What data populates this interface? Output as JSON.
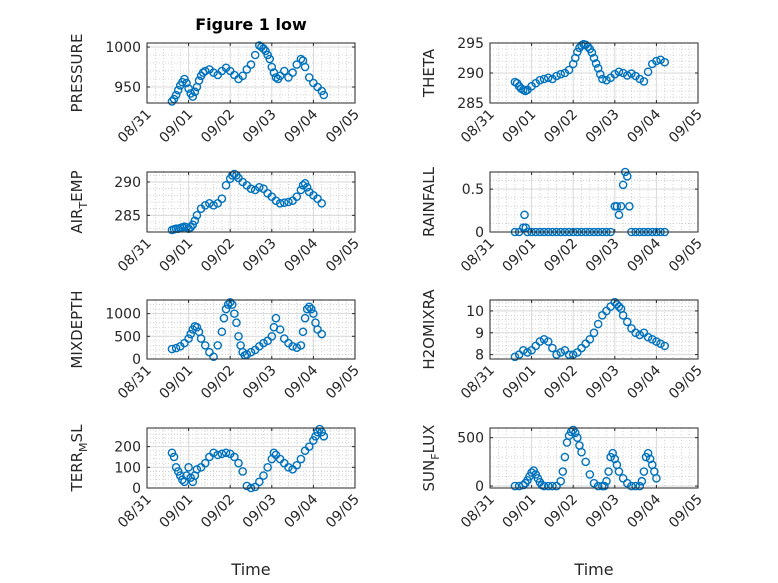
{
  "figure": {
    "title": "Figure 1 low",
    "marker_color": "#0072BD",
    "x_tick_labels": [
      "08/31",
      "09/01",
      "09/02",
      "09/03",
      "09/04",
      "09/05"
    ],
    "x_label": "Time"
  },
  "chart_data": [
    {
      "type": "scatter",
      "ylabel": "PRESSURE",
      "ylim": [
        930,
        1005
      ],
      "yticks": [
        950,
        1000
      ],
      "xlim": [
        0,
        5
      ],
      "x_tick_labels": [
        "08/31",
        "09/01",
        "09/02",
        "09/03",
        "09/04",
        "09/05"
      ],
      "grid": true,
      "minor_grid": true,
      "x": [
        0.6,
        0.65,
        0.7,
        0.75,
        0.8,
        0.85,
        0.9,
        0.95,
        1.0,
        1.05,
        1.1,
        1.15,
        1.2,
        1.25,
        1.3,
        1.35,
        1.4,
        1.5,
        1.6,
        1.7,
        1.8,
        1.9,
        2.0,
        2.1,
        2.2,
        2.3,
        2.4,
        2.5,
        2.6,
        2.7,
        2.75,
        2.8,
        2.85,
        2.9,
        2.95,
        3.0,
        3.05,
        3.1,
        3.15,
        3.2,
        3.3,
        3.4,
        3.5,
        3.6,
        3.7,
        3.75,
        3.8,
        3.9,
        4.0,
        4.1,
        4.2,
        4.25
      ],
      "y": [
        932,
        935,
        940,
        946,
        952,
        956,
        960,
        955,
        948,
        942,
        938,
        944,
        950,
        958,
        964,
        968,
        970,
        972,
        968,
        965,
        970,
        974,
        970,
        965,
        960,
        964,
        972,
        978,
        990,
        1002,
        1000,
        998,
        995,
        990,
        985,
        975,
        968,
        962,
        960,
        964,
        970,
        962,
        968,
        978,
        985,
        983,
        975,
        962,
        955,
        950,
        945,
        940
      ]
    },
    {
      "type": "scatter",
      "ylabel": "THETA",
      "ylim": [
        285,
        295
      ],
      "yticks": [
        285,
        290,
        295
      ],
      "xlim": [
        0,
        5
      ],
      "x_tick_labels": [
        "08/31",
        "09/01",
        "09/02",
        "09/03",
        "09/04",
        "09/05"
      ],
      "grid": true,
      "minor_grid": true,
      "x": [
        0.6,
        0.65,
        0.7,
        0.75,
        0.8,
        0.85,
        0.9,
        1.0,
        1.1,
        1.2,
        1.3,
        1.4,
        1.5,
        1.6,
        1.7,
        1.8,
        1.9,
        2.0,
        2.05,
        2.1,
        2.15,
        2.2,
        2.25,
        2.3,
        2.35,
        2.4,
        2.45,
        2.5,
        2.55,
        2.6,
        2.65,
        2.7,
        2.8,
        2.9,
        3.0,
        3.1,
        3.2,
        3.3,
        3.4,
        3.5,
        3.6,
        3.7,
        3.8,
        3.9,
        4.0,
        4.1,
        4.2
      ],
      "y": [
        288.5,
        288.3,
        287.8,
        287.4,
        287.2,
        287.0,
        287.2,
        287.8,
        288.3,
        288.8,
        289.0,
        289.2,
        289.0,
        289.5,
        289.8,
        290.0,
        290.5,
        291.5,
        292.5,
        293.5,
        294.2,
        294.6,
        294.8,
        294.7,
        294.4,
        294.0,
        293.4,
        292.5,
        291.6,
        290.8,
        289.8,
        289.0,
        288.8,
        289.2,
        289.8,
        290.2,
        290.0,
        289.6,
        289.9,
        289.5,
        289.0,
        288.6,
        290.2,
        291.5,
        292.0,
        292.2,
        291.8
      ]
    },
    {
      "type": "scatter",
      "ylabel": "AIR_T_EMP",
      "ylim": [
        282.5,
        291.5
      ],
      "yticks": [
        285,
        290
      ],
      "xlim": [
        0,
        5
      ],
      "x_tick_labels": [
        "08/31",
        "09/01",
        "09/02",
        "09/03",
        "09/04",
        "09/05"
      ],
      "grid": true,
      "minor_grid": true,
      "x": [
        0.6,
        0.65,
        0.7,
        0.75,
        0.8,
        0.85,
        0.9,
        0.95,
        1.0,
        1.05,
        1.1,
        1.15,
        1.2,
        1.3,
        1.4,
        1.5,
        1.6,
        1.7,
        1.8,
        1.9,
        2.0,
        2.05,
        2.1,
        2.15,
        2.2,
        2.3,
        2.4,
        2.5,
        2.6,
        2.7,
        2.8,
        2.9,
        3.0,
        3.1,
        3.2,
        3.3,
        3.4,
        3.5,
        3.6,
        3.7,
        3.75,
        3.8,
        3.85,
        3.9,
        4.0,
        4.1,
        4.2
      ],
      "y": [
        282.8,
        282.9,
        283.0,
        283.0,
        283.1,
        283.2,
        283.3,
        283.2,
        283.0,
        283.2,
        283.6,
        284.2,
        285.0,
        286.0,
        286.5,
        286.8,
        286.5,
        286.8,
        287.5,
        289.5,
        290.5,
        291.0,
        291.2,
        291.0,
        290.6,
        290.0,
        289.5,
        289.0,
        288.8,
        289.2,
        289.0,
        288.3,
        287.8,
        287.2,
        286.8,
        286.9,
        287.0,
        287.2,
        287.8,
        288.8,
        289.5,
        289.8,
        289.2,
        288.5,
        288.0,
        287.5,
        286.8
      ]
    },
    {
      "type": "scatter",
      "ylabel": "RAINFALL",
      "ylim": [
        0,
        0.7
      ],
      "yticks": [
        0,
        0.5
      ],
      "xlim": [
        0,
        5
      ],
      "x_tick_labels": [
        "08/31",
        "09/01",
        "09/02",
        "09/03",
        "09/04",
        "09/05"
      ],
      "grid": true,
      "minor_grid": true,
      "x": [
        0.6,
        0.7,
        0.8,
        0.83,
        0.86,
        0.9,
        1.0,
        1.1,
        1.2,
        1.3,
        1.4,
        1.5,
        1.6,
        1.7,
        1.8,
        1.9,
        2.0,
        2.1,
        2.2,
        2.3,
        2.4,
        2.5,
        2.6,
        2.7,
        2.8,
        2.9,
        3.0,
        3.05,
        3.1,
        3.15,
        3.2,
        3.25,
        3.3,
        3.35,
        3.4,
        3.5,
        3.6,
        3.7,
        3.8,
        3.9,
        4.0,
        4.1,
        4.2
      ],
      "y": [
        0,
        0,
        0.05,
        0.2,
        0.05,
        0,
        0,
        0,
        0,
        0,
        0,
        0,
        0,
        0,
        0,
        0,
        0,
        0,
        0,
        0,
        0,
        0,
        0,
        0,
        0,
        0,
        0.3,
        0.3,
        0.2,
        0.3,
        0.55,
        0.7,
        0.65,
        0.3,
        0,
        0,
        0,
        0,
        0,
        0,
        0,
        0,
        0
      ]
    },
    {
      "type": "scatter",
      "ylabel": "MIXDEPTH",
      "ylim": [
        0,
        1300
      ],
      "yticks": [
        0,
        500,
        1000
      ],
      "xlim": [
        0,
        5
      ],
      "x_tick_labels": [
        "08/31",
        "09/01",
        "09/02",
        "09/03",
        "09/04",
        "09/05"
      ],
      "grid": true,
      "minor_grid": true,
      "x": [
        0.6,
        0.7,
        0.8,
        0.9,
        1.0,
        1.05,
        1.1,
        1.15,
        1.2,
        1.25,
        1.3,
        1.4,
        1.5,
        1.6,
        1.7,
        1.8,
        1.85,
        1.9,
        1.95,
        2.0,
        2.05,
        2.1,
        2.15,
        2.2,
        2.25,
        2.3,
        2.35,
        2.4,
        2.5,
        2.6,
        2.7,
        2.8,
        2.9,
        3.0,
        3.05,
        3.1,
        3.2,
        3.3,
        3.4,
        3.5,
        3.6,
        3.7,
        3.75,
        3.8,
        3.85,
        3.9,
        3.95,
        4.0,
        4.05,
        4.1,
        4.2
      ],
      "y": [
        220,
        240,
        280,
        350,
        450,
        550,
        650,
        720,
        700,
        600,
        450,
        300,
        150,
        50,
        300,
        600,
        900,
        1100,
        1200,
        1250,
        1200,
        1000,
        800,
        500,
        300,
        150,
        80,
        100,
        150,
        200,
        280,
        350,
        400,
        500,
        700,
        900,
        650,
        450,
        350,
        280,
        250,
        300,
        600,
        900,
        1100,
        1150,
        1100,
        1000,
        800,
        650,
        550
      ]
    },
    {
      "type": "scatter",
      "ylabel": "H2OMIXRA",
      "ylim": [
        7.8,
        10.5
      ],
      "yticks": [
        8,
        9,
        10
      ],
      "xlim": [
        0,
        5
      ],
      "x_tick_labels": [
        "08/31",
        "09/01",
        "09/02",
        "09/03",
        "09/04",
        "09/05"
      ],
      "grid": true,
      "minor_grid": true,
      "x": [
        0.6,
        0.7,
        0.8,
        0.9,
        1.0,
        1.1,
        1.2,
        1.3,
        1.4,
        1.5,
        1.6,
        1.7,
        1.8,
        1.9,
        2.0,
        2.1,
        2.2,
        2.3,
        2.4,
        2.5,
        2.6,
        2.7,
        2.8,
        2.9,
        3.0,
        3.05,
        3.1,
        3.15,
        3.2,
        3.3,
        3.4,
        3.5,
        3.6,
        3.7,
        3.8,
        3.9,
        4.0,
        4.1,
        4.2
      ],
      "y": [
        7.9,
        8.0,
        8.2,
        8.1,
        8.2,
        8.4,
        8.6,
        8.7,
        8.6,
        8.3,
        8.0,
        8.1,
        8.2,
        8.0,
        8.0,
        8.1,
        8.3,
        8.5,
        8.7,
        9.0,
        9.4,
        9.8,
        10.0,
        10.2,
        10.4,
        10.3,
        10.2,
        10.1,
        9.8,
        9.5,
        9.2,
        9.0,
        8.9,
        9.0,
        8.8,
        8.7,
        8.6,
        8.5,
        8.4
      ]
    },
    {
      "type": "scatter",
      "ylabel": "TERR_M_SL",
      "ylim": [
        0,
        290
      ],
      "yticks": [
        0,
        100,
        200
      ],
      "xlim": [
        0,
        5
      ],
      "x_tick_labels": [
        "08/31",
        "09/01",
        "09/02",
        "09/03",
        "09/04",
        "09/05"
      ],
      "grid": true,
      "minor_grid": true,
      "x": [
        0.6,
        0.65,
        0.7,
        0.75,
        0.8,
        0.85,
        0.9,
        0.95,
        1.0,
        1.05,
        1.1,
        1.15,
        1.2,
        1.3,
        1.4,
        1.5,
        1.6,
        1.7,
        1.8,
        1.9,
        2.0,
        2.1,
        2.2,
        2.3,
        2.4,
        2.5,
        2.6,
        2.7,
        2.8,
        2.9,
        3.0,
        3.05,
        3.1,
        3.2,
        3.3,
        3.4,
        3.5,
        3.6,
        3.7,
        3.8,
        3.9,
        4.0,
        4.05,
        4.1,
        4.15,
        4.2,
        4.25
      ],
      "y": [
        170,
        150,
        100,
        80,
        60,
        40,
        30,
        60,
        100,
        50,
        30,
        60,
        90,
        100,
        120,
        150,
        170,
        160,
        165,
        170,
        165,
        150,
        120,
        80,
        10,
        0,
        5,
        30,
        60,
        100,
        140,
        170,
        160,
        140,
        120,
        100,
        90,
        110,
        140,
        180,
        200,
        230,
        250,
        270,
        285,
        270,
        250
      ]
    },
    {
      "type": "scatter",
      "ylabel": "SUN_F_LUX",
      "ylim": [
        -20,
        600
      ],
      "yticks": [
        0,
        500
      ],
      "xlim": [
        0,
        5
      ],
      "x_tick_labels": [
        "08/31",
        "09/01",
        "09/02",
        "09/03",
        "09/04",
        "09/05"
      ],
      "grid": true,
      "minor_grid": true,
      "x": [
        0.6,
        0.7,
        0.8,
        0.85,
        0.9,
        0.95,
        1.0,
        1.05,
        1.1,
        1.15,
        1.2,
        1.25,
        1.3,
        1.4,
        1.5,
        1.6,
        1.7,
        1.75,
        1.8,
        1.85,
        1.9,
        1.95,
        2.0,
        2.05,
        2.1,
        2.15,
        2.2,
        2.3,
        2.4,
        2.5,
        2.6,
        2.7,
        2.75,
        2.8,
        2.85,
        2.9,
        2.95,
        3.0,
        3.05,
        3.1,
        3.2,
        3.3,
        3.4,
        3.5,
        3.6,
        3.65,
        3.7,
        3.75,
        3.8,
        3.85,
        3.9,
        3.95,
        4.0
      ],
      "y": [
        0,
        0,
        10,
        30,
        60,
        100,
        140,
        160,
        120,
        80,
        40,
        10,
        0,
        0,
        0,
        0,
        50,
        150,
        300,
        450,
        520,
        560,
        580,
        550,
        500,
        420,
        350,
        250,
        120,
        30,
        0,
        0,
        0,
        50,
        150,
        300,
        340,
        280,
        220,
        150,
        80,
        30,
        0,
        0,
        0,
        50,
        150,
        300,
        340,
        280,
        220,
        150,
        80
      ]
    }
  ]
}
